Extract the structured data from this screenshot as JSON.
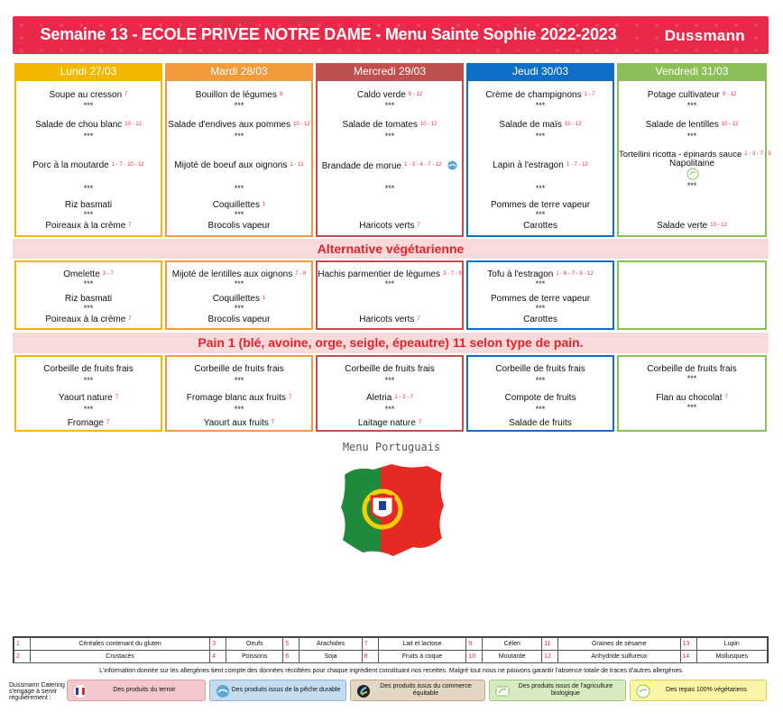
{
  "header": {
    "title": "Semaine 13 - ECOLE PRIVEE NOTRE DAME - Menu Sainte Sophie 2022-2023",
    "brand": "Dussmann",
    "color": "#e8294a"
  },
  "days": [
    {
      "label": "Lundi 27/03",
      "color": "#f2b800"
    },
    {
      "label": "Mardi 28/03",
      "color": "#f29a3c"
    },
    {
      "label": "Mercredi 29/03",
      "color": "#c0504d"
    },
    {
      "label": "Jeudi 30/03",
      "color": "#0f6fc6"
    },
    {
      "label": "Vendredi 31/03",
      "color": "#8dbf58"
    }
  ],
  "menu": {
    "lundi": {
      "soup": "Soupe au cresson",
      "soup_al": "7",
      "starter": "Salade de chou blanc",
      "starter_al": "10 - 12",
      "main": "Porc à la moutarde",
      "main_al": "1 - 7 - 10 - 12",
      "side1": "Riz basmati",
      "side1_al": "",
      "side2": "Poireaux à la crème",
      "side2_al": "7"
    },
    "mardi": {
      "soup": "Bouillon de légumes",
      "soup_al": "9",
      "starter": "Salade d'endives aux pommes",
      "starter_al": "10 - 12",
      "main": "Mijoté de boeuf aux oignons",
      "main_al": "1 - 12",
      "side1": "Coquillettes",
      "side1_al": "1",
      "side2": "Brocolis vapeur",
      "side2_al": ""
    },
    "mercredi": {
      "soup": "Caldo verde",
      "soup_al": "9 - 12",
      "starter": "Salade de tomates",
      "starter_al": "10 - 12",
      "main": "Brandade de morue",
      "main_al": "1 - 3 - 4 - 7 - 12",
      "side1": "",
      "side1_al": "",
      "side2": "Haricots verts",
      "side2_al": "7"
    },
    "jeudi": {
      "soup": "Crème de champignons",
      "soup_al": "1 - 7",
      "starter": "Salade de maïs",
      "starter_al": "10 - 12",
      "main": "Lapin à l'estragon",
      "main_al": "1 - 7 - 12",
      "side1": "Pommes de terre vapeur",
      "side1_al": "",
      "side2": "Carottes",
      "side2_al": ""
    },
    "vendredi": {
      "soup": "Potage cultivateur",
      "soup_al": "9 - 12",
      "starter": "Salade de lentilles",
      "starter_al": "10 - 12",
      "main": "Tortellini ricotta - épinards sauce",
      "main_al": "1 - 3 - 7 - 9",
      "main2": "Napolitaine",
      "side2": "Salade verte",
      "side2_al": "10 - 12"
    }
  },
  "stars": "***",
  "veg": {
    "title": "Alternative végétarienne",
    "lundi": {
      "main": "Omelette",
      "main_al": "3 - 7",
      "side1": "Riz basmati",
      "side2": "Poireaux à la crème",
      "side2_al": "7"
    },
    "mardi": {
      "main": "Mijoté de lentilles aux oignons",
      "main_al": "7 - 9",
      "side1": "Coquillettes",
      "side1_al": "1",
      "side2": "Brocolis vapeur"
    },
    "mercredi": {
      "main": "Hachis parmentier de légumes",
      "main_al": "3 - 7 - 9",
      "side2": "Haricots verts",
      "side2_al": "7"
    },
    "jeudi": {
      "main": "Tofu à l'estragon",
      "main_al": "1 - 6 - 7 - 9 - 12",
      "side1": "Pommes de terre vapeur",
      "side2": "Carottes"
    }
  },
  "bread": {
    "title": "Pain 1 (blé,  avoine, orge, seigle, épeautre) 11 selon type de pain."
  },
  "dessert": {
    "lundi": {
      "fruit": "Corbeille de fruits frais",
      "d1": "Yaourt nature",
      "d1_al": "7",
      "d2": "Fromage",
      "d2_al": "7"
    },
    "mardi": {
      "fruit": "Corbeille de fruits frais",
      "d1": "Fromage blanc aux fruits",
      "d1_al": "7",
      "d2": "Yaourt aux fruits",
      "d2_al": "7"
    },
    "mercredi": {
      "fruit": "Corbeille de fruits frais",
      "d1": "Aletria",
      "d1_al": "1 - 3 - 7",
      "d2": "Laitage nature",
      "d2_al": "7"
    },
    "jeudi": {
      "fruit": "Corbeille de fruits frais",
      "d1": "Compote de fruits",
      "d1_al": "",
      "d2": "Salade de fruits",
      "d2_al": ""
    },
    "vendredi": {
      "fruit": "Corbeille de fruits frais",
      "d1": "Flan au chocolat",
      "d1_al": "7"
    }
  },
  "special": {
    "label": "Menu Portuguais"
  },
  "allergens": [
    {
      "n": "1",
      "name": "Céréales contenant du gluten"
    },
    {
      "n": "3",
      "name": "Oeufs"
    },
    {
      "n": "5",
      "name": "Arachides"
    },
    {
      "n": "7",
      "name": "Lait et lactose"
    },
    {
      "n": "9",
      "name": "Céleri"
    },
    {
      "n": "11",
      "name": "Graines de sésame"
    },
    {
      "n": "13",
      "name": "Lupin"
    },
    {
      "n": "2",
      "name": "Crustacés"
    },
    {
      "n": "4",
      "name": "Poissons"
    },
    {
      "n": "6",
      "name": "Soja"
    },
    {
      "n": "8",
      "name": "Fruits à coque"
    },
    {
      "n": "10",
      "name": "Moutarde"
    },
    {
      "n": "12",
      "name": "Anhydride sulfureux"
    },
    {
      "n": "14",
      "name": "Mollusques"
    }
  ],
  "disclaimer": "L'information donnée sur les allergènes tient compte des données récoltées pour chaque ingrédient constituant nos recettes. Malgré tout nous ne pouvons garantir l'absence totale de traces d'autres allergènes.",
  "footer": {
    "commit": "Dussmann Catering s'engage à servir régulièrement :",
    "badges": [
      {
        "label": "Des produits du terroir",
        "bg": "#f4c7cc",
        "icon": "local-product-icon"
      },
      {
        "label": "Des produits issus de la pêche durable",
        "bg": "#c5dcef",
        "icon": "fish-icon"
      },
      {
        "label": "Des produits issus du commerce équitable",
        "bg": "#e3d6c2",
        "icon": "fair-trade-icon"
      },
      {
        "label": "Des produits issus de l'agriculture biologique",
        "bg": "#d7ebc2",
        "icon": "organic-icon"
      },
      {
        "label": "Des repas 100% végétariens",
        "bg": "#fbf5a8",
        "icon": "veggie-icon"
      }
    ]
  }
}
